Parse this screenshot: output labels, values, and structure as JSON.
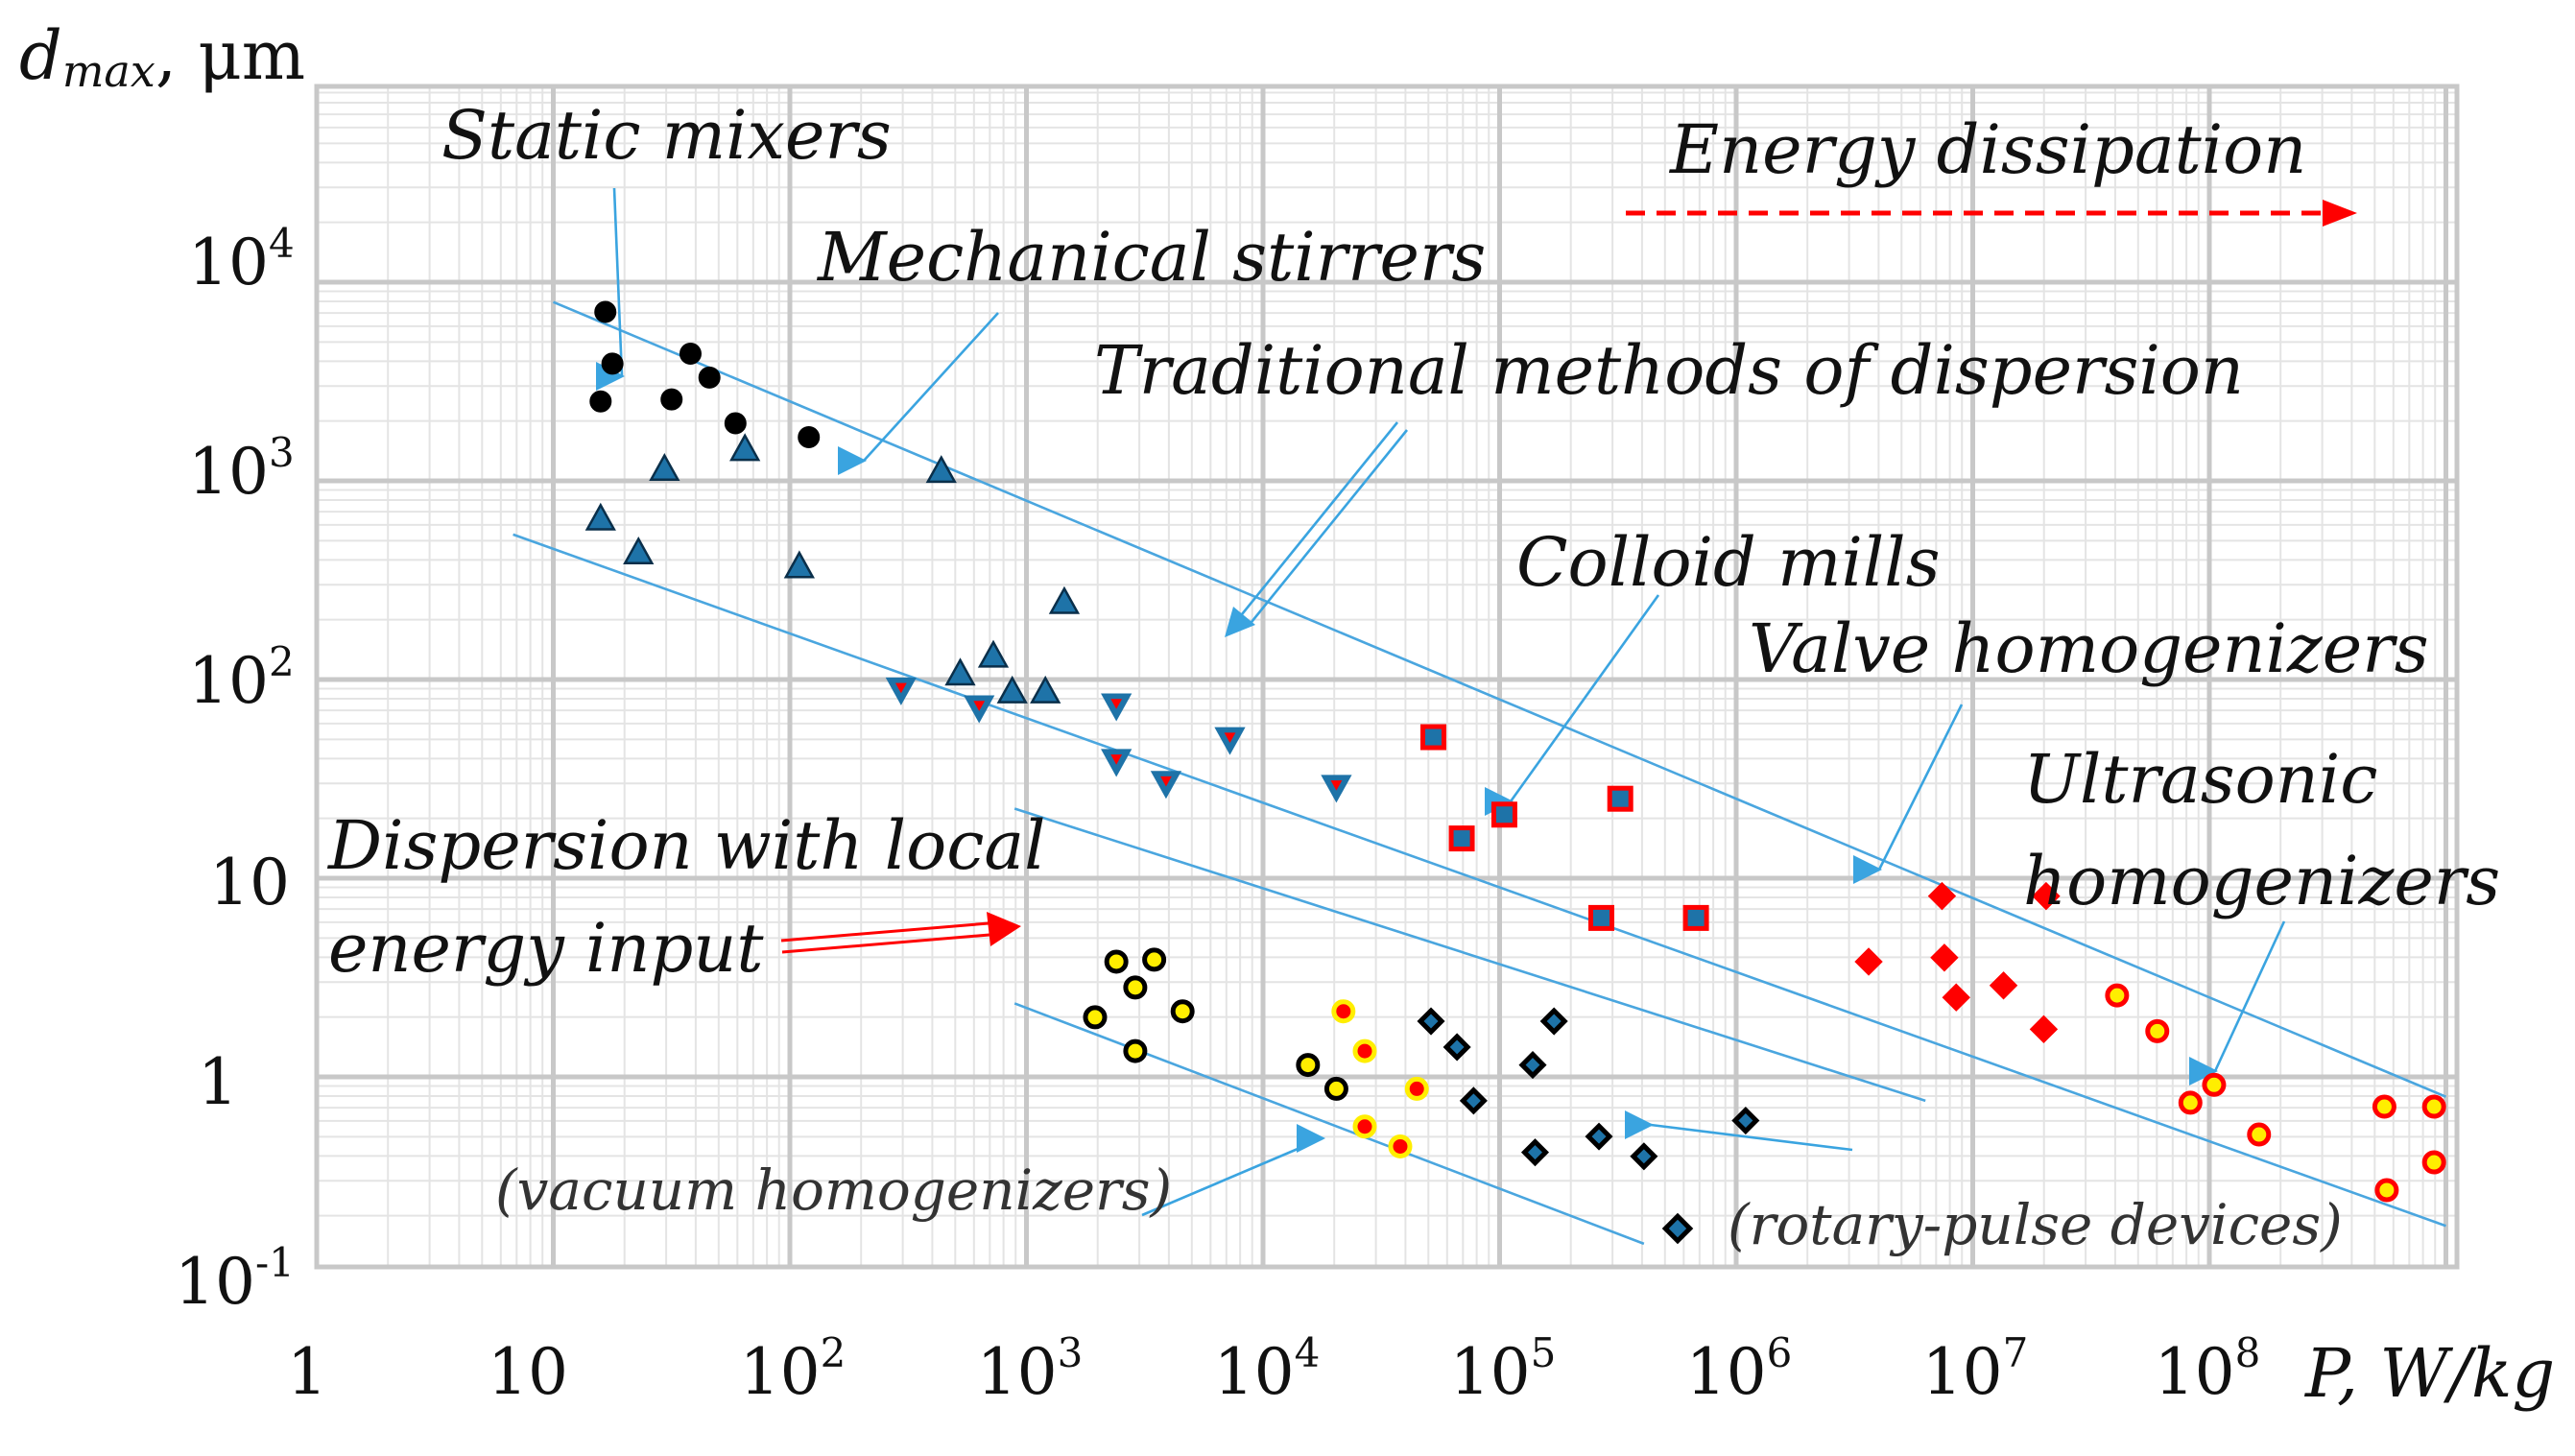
{
  "chart_data": {
    "type": "scatter",
    "title": "",
    "xlabel": "P, W/kg",
    "ylabel_main": "d",
    "ylabel_sub": "max",
    "ylabel_unit": ", μm",
    "x_scale": "log",
    "y_scale": "log",
    "xlim_log10": [
      0,
      9
    ],
    "ylim_log10": [
      -1,
      4.8
    ],
    "x_tick_labels": [
      {
        "base": "1",
        "exp": "",
        "log": 0
      },
      {
        "base": "10",
        "exp": "",
        "log": 1
      },
      {
        "base": "10",
        "exp": "2",
        "log": 2
      },
      {
        "base": "10",
        "exp": "3",
        "log": 3
      },
      {
        "base": "10",
        "exp": "4",
        "log": 4
      },
      {
        "base": "10",
        "exp": "5",
        "log": 5
      },
      {
        "base": "10",
        "exp": "6",
        "log": 6
      },
      {
        "base": "10",
        "exp": "7",
        "log": 7
      },
      {
        "base": "10",
        "exp": "8",
        "log": 8
      }
    ],
    "y_tick_labels": [
      {
        "base": "10",
        "exp": "-1",
        "log": -1
      },
      {
        "base": "1",
        "exp": "",
        "log": 0
      },
      {
        "base": "10",
        "exp": "",
        "log": 1
      },
      {
        "base": "10",
        "exp": "2",
        "log": 2
      },
      {
        "base": "10",
        "exp": "3",
        "log": 3
      },
      {
        "base": "10",
        "exp": "4",
        "log": 4
      }
    ],
    "series": [
      {
        "name": "Static mixers",
        "marker": "circle-black",
        "points_log10": [
          [
            1.22,
            3.85
          ],
          [
            1.25,
            3.59
          ],
          [
            1.2,
            3.4
          ],
          [
            1.58,
            3.64
          ],
          [
            1.66,
            3.52
          ],
          [
            1.5,
            3.41
          ],
          [
            1.77,
            3.29
          ],
          [
            2.08,
            3.22
          ]
        ]
      },
      {
        "name": "Mechanical stirrers",
        "marker": "triangle-up-blue",
        "points_log10": [
          [
            1.2,
            2.81
          ],
          [
            1.36,
            2.64
          ],
          [
            1.47,
            3.06
          ],
          [
            1.81,
            3.16
          ],
          [
            2.04,
            2.57
          ],
          [
            2.64,
            3.05
          ],
          [
            3.16,
            2.39
          ],
          [
            2.72,
            2.03
          ],
          [
            2.86,
            2.12
          ],
          [
            2.94,
            1.94
          ],
          [
            3.08,
            1.94
          ]
        ]
      },
      {
        "name": "Mechanical stirrers (down)",
        "marker": "triangle-down-blue",
        "points_log10": [
          [
            2.47,
            1.95
          ],
          [
            2.8,
            1.86
          ],
          [
            3.38,
            1.87
          ],
          [
            3.38,
            1.59
          ],
          [
            3.59,
            1.48
          ],
          [
            3.86,
            1.7
          ],
          [
            4.31,
            1.46
          ]
        ]
      },
      {
        "name": "Colloid mills",
        "marker": "square-red-blue",
        "points_log10": [
          [
            4.72,
            1.71
          ],
          [
            4.84,
            1.2
          ],
          [
            5.02,
            1.32
          ],
          [
            5.51,
            1.4
          ],
          [
            5.43,
            0.8
          ],
          [
            5.83,
            0.8
          ]
        ]
      },
      {
        "name": "Valve homogenizers",
        "marker": "diamond-red",
        "points_log10": [
          [
            6.56,
            0.58
          ],
          [
            6.87,
            0.91
          ],
          [
            6.93,
            0.4
          ],
          [
            6.88,
            0.6
          ],
          [
            7.13,
            0.46
          ],
          [
            7.3,
            0.24
          ],
          [
            7.31,
            0.91
          ]
        ]
      },
      {
        "name": "Ultrasonic homogenizers",
        "marker": "circle-red-yellow",
        "points_log10": [
          [
            7.61,
            0.41
          ],
          [
            7.78,
            0.23
          ],
          [
            7.92,
            -0.13
          ],
          [
            8.02,
            -0.04
          ],
          [
            8.21,
            -0.29
          ],
          [
            8.74,
            -0.15
          ],
          [
            8.95,
            -0.15
          ],
          [
            8.95,
            -0.43
          ],
          [
            8.75,
            -0.57
          ]
        ]
      },
      {
        "name": "Dispersion with local energy input",
        "marker": "circle-yellow-black",
        "points_log10": [
          [
            3.29,
            0.3
          ],
          [
            3.38,
            0.58
          ],
          [
            3.46,
            0.45
          ],
          [
            3.46,
            0.13
          ],
          [
            3.54,
            0.59
          ],
          [
            3.66,
            0.33
          ],
          [
            4.19,
            0.06
          ],
          [
            4.31,
            -0.06
          ]
        ]
      },
      {
        "name": "(vacuum homogenizers)",
        "marker": "circle-yellow-red",
        "points_log10": [
          [
            4.34,
            0.33
          ],
          [
            4.43,
            0.13
          ],
          [
            4.43,
            -0.25
          ],
          [
            4.58,
            -0.35
          ],
          [
            4.65,
            -0.06
          ]
        ]
      },
      {
        "name": "(rotary-pulse devices)",
        "marker": "diamond-black-blue",
        "points_log10": [
          [
            4.71,
            0.28
          ],
          [
            4.82,
            0.15
          ],
          [
            4.89,
            -0.12
          ],
          [
            5.14,
            0.06
          ],
          [
            5.23,
            0.28
          ],
          [
            5.15,
            -0.38
          ],
          [
            5.42,
            -0.3
          ],
          [
            5.61,
            -0.4
          ],
          [
            6.04,
            -0.22
          ]
        ]
      }
    ],
    "trend_lines_log10": [
      [
        [
          1.0,
          3.9
        ],
        [
          9.0,
          -0.1
        ]
      ],
      [
        [
          0.83,
          2.73
        ],
        [
          9.0,
          -0.75
        ]
      ],
      [
        [
          2.95,
          1.35
        ],
        [
          6.8,
          -0.12
        ]
      ],
      [
        [
          2.95,
          0.37
        ],
        [
          5.61,
          -0.84
        ]
      ]
    ],
    "annotations": {
      "static_mixers": "Static mixers",
      "mechanical_stirrers": "Mechanical stirrers",
      "traditional": "Traditional methods of dispersion",
      "colloid_mills": "Colloid mills",
      "valve": "Valve homogenizers",
      "ultrasonic_1": "Ultrasonic",
      "ultrasonic_2": "homogenizers",
      "local_1": "Dispersion with local",
      "local_2": "energy input",
      "vacuum": "(vacuum homogenizers)",
      "rotary": "(rotary-pulse devices)",
      "energy": "Energy dissipation"
    },
    "colors": {
      "black": "#000000",
      "blue_marker": "#1e73a8",
      "red": "#ff0000",
      "yellow": "#ffee00",
      "trend": "#4aa6df",
      "grid": "#c8c8c8"
    }
  }
}
